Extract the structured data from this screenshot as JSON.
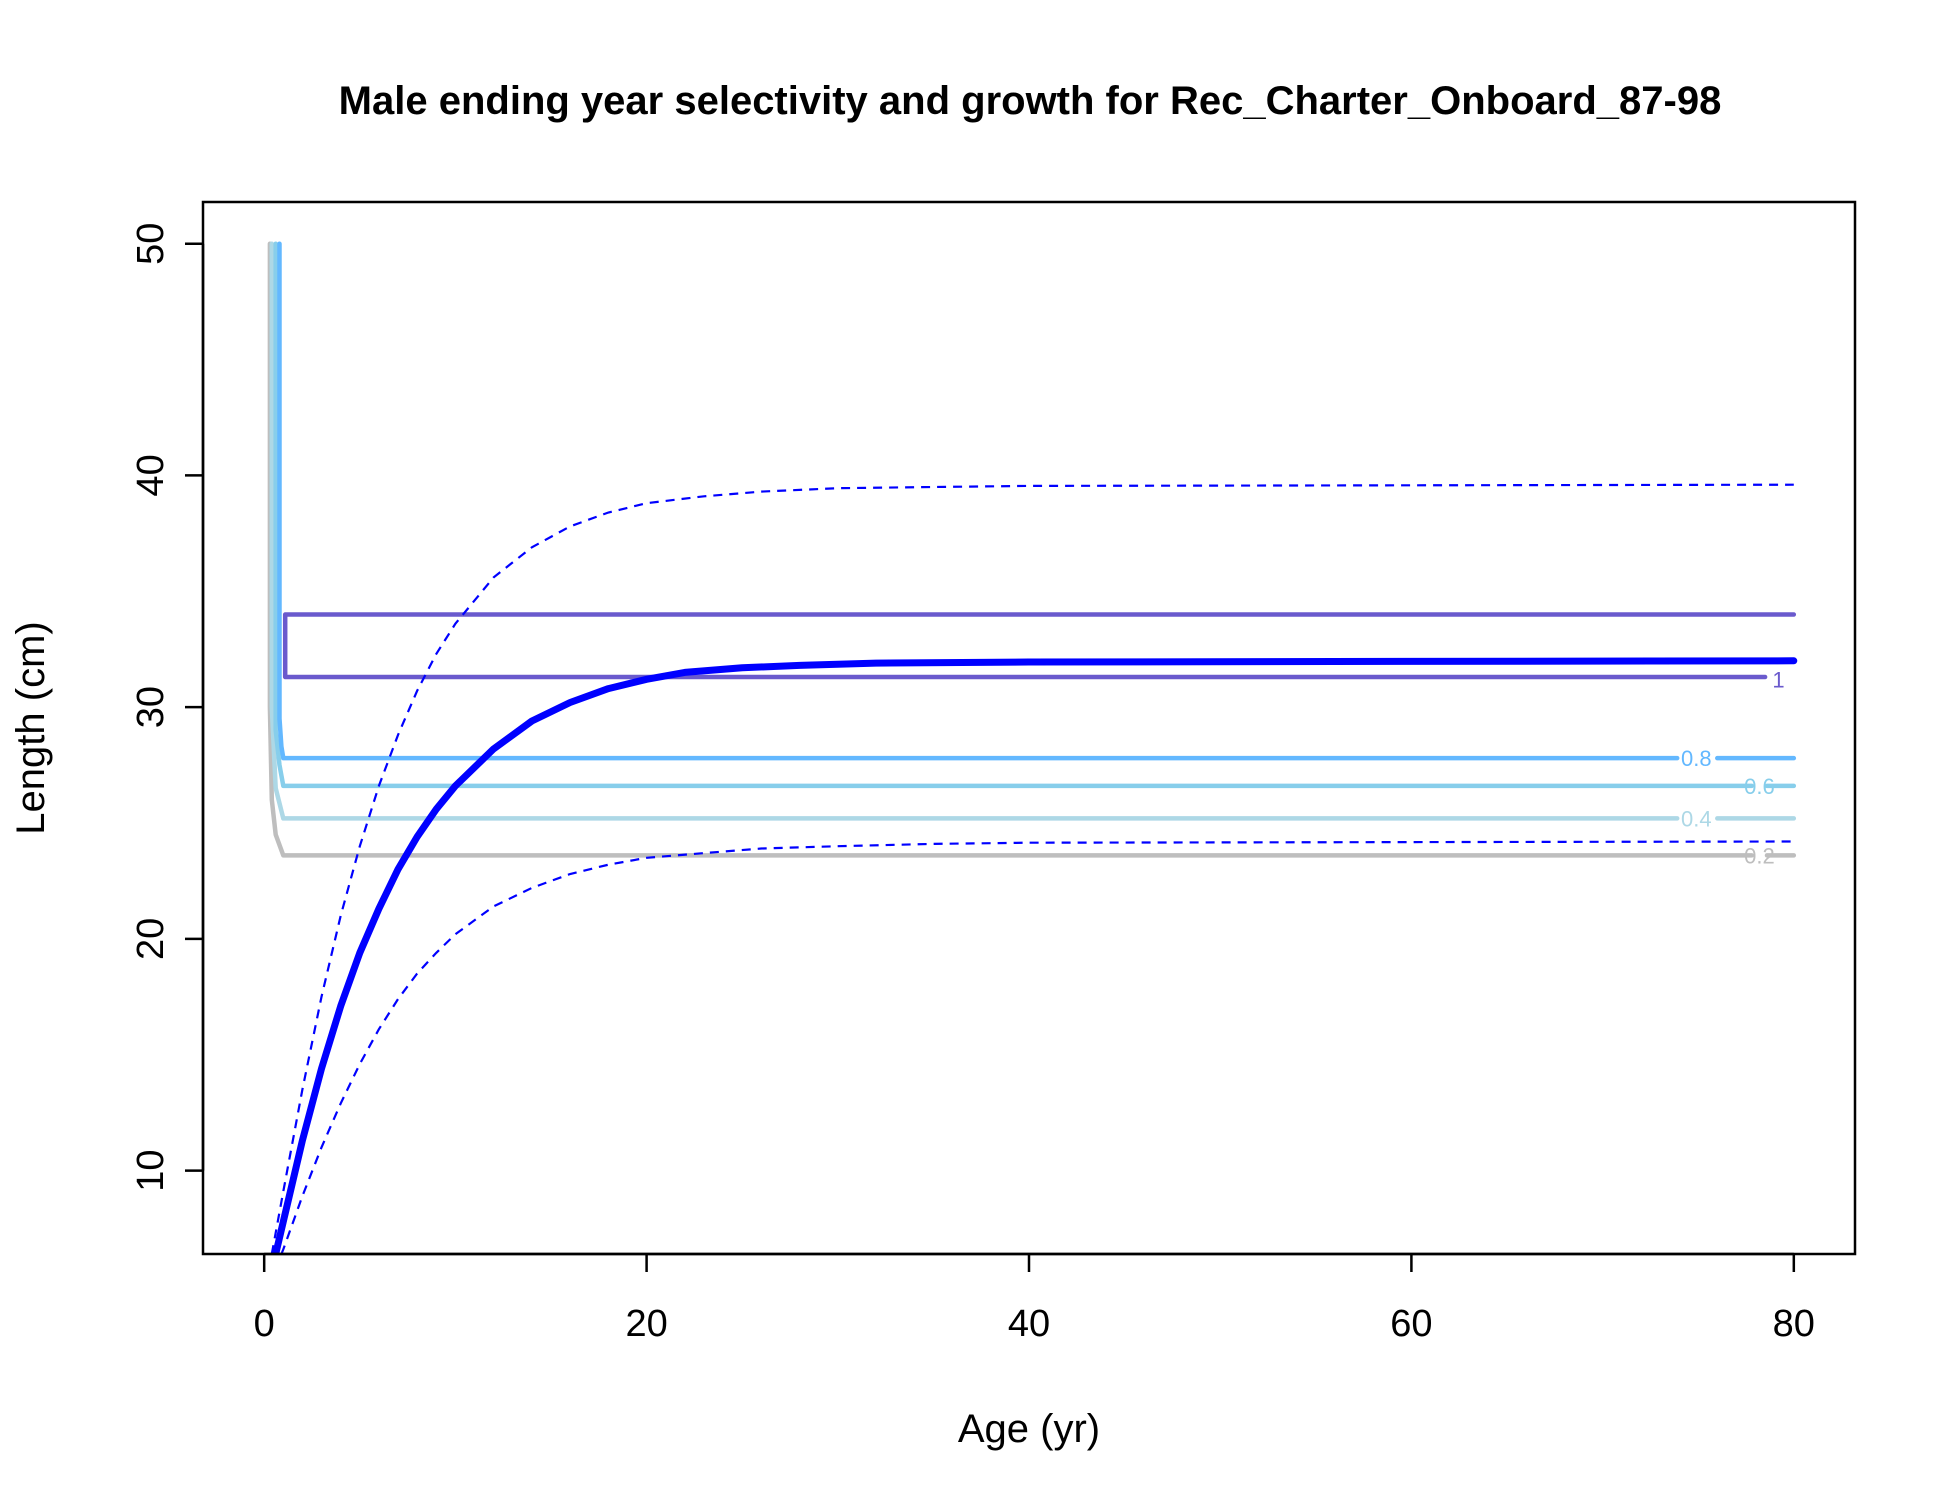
{
  "chart_data": {
    "type": "line",
    "title": "Male ending year selectivity and growth for Rec_Charter_Onboard_87-98",
    "xlabel": "Age (yr)",
    "ylabel": "Length (cm)",
    "xlim": [
      -3.2,
      83.2
    ],
    "ylim": [
      6.4,
      51.8
    ],
    "xticks": [
      0,
      20,
      40,
      60,
      80
    ],
    "yticks": [
      10,
      20,
      30,
      40,
      50
    ],
    "grid": false,
    "growth": {
      "color": "#0000FF",
      "mean": [
        [
          0.6,
          6.4
        ],
        [
          1,
          7.8
        ],
        [
          2,
          11.3
        ],
        [
          3,
          14.4
        ],
        [
          4,
          17.1
        ],
        [
          5,
          19.4
        ],
        [
          6,
          21.3
        ],
        [
          7,
          23
        ],
        [
          8,
          24.4
        ],
        [
          9,
          25.6
        ],
        [
          10,
          26.6
        ],
        [
          12,
          28.2
        ],
        [
          14,
          29.4
        ],
        [
          16,
          30.2
        ],
        [
          18,
          30.8
        ],
        [
          20,
          31.2
        ],
        [
          22,
          31.5
        ],
        [
          25,
          31.7
        ],
        [
          28,
          31.8
        ],
        [
          32,
          31.9
        ],
        [
          40,
          31.95
        ],
        [
          80,
          32
        ]
      ],
      "upper": [
        [
          0.4,
          6.4
        ],
        [
          1,
          9.1
        ],
        [
          2,
          13.5
        ],
        [
          3,
          17.5
        ],
        [
          4,
          21
        ],
        [
          5,
          24
        ],
        [
          6,
          26.6
        ],
        [
          7,
          28.8
        ],
        [
          8,
          30.7
        ],
        [
          9,
          32.3
        ],
        [
          10,
          33.6
        ],
        [
          12,
          35.6
        ],
        [
          14,
          36.9
        ],
        [
          16,
          37.8
        ],
        [
          18,
          38.4
        ],
        [
          20,
          38.8
        ],
        [
          23,
          39.1
        ],
        [
          26,
          39.3
        ],
        [
          30,
          39.45
        ],
        [
          35,
          39.5
        ],
        [
          40,
          39.55
        ],
        [
          80,
          39.6
        ]
      ],
      "lower": [
        [
          0.9,
          6.4
        ],
        [
          1,
          6.6
        ],
        [
          2,
          8.9
        ],
        [
          3,
          11
        ],
        [
          4,
          12.9
        ],
        [
          5,
          14.6
        ],
        [
          6,
          16.1
        ],
        [
          7,
          17.4
        ],
        [
          8,
          18.5
        ],
        [
          9,
          19.4
        ],
        [
          10,
          20.2
        ],
        [
          12,
          21.4
        ],
        [
          14,
          22.2
        ],
        [
          16,
          22.8
        ],
        [
          18,
          23.2
        ],
        [
          20,
          23.5
        ],
        [
          23,
          23.7
        ],
        [
          26,
          23.9
        ],
        [
          30,
          24
        ],
        [
          35,
          24.1
        ],
        [
          40,
          24.15
        ],
        [
          80,
          24.2
        ]
      ]
    },
    "contours": [
      {
        "level": "0.2",
        "color": "#BEBEBE",
        "path": [
          [
            0.3,
            50
          ],
          [
            0.3,
            30
          ],
          [
            0.4,
            26
          ],
          [
            0.6,
            24.5
          ],
          [
            1,
            23.6
          ],
          [
            80,
            23.6
          ]
        ],
        "label_at": [
          78.2,
          23.6
        ],
        "label_gap": [
          77.8,
          78.6
        ]
      },
      {
        "level": "0.4",
        "color": "#ADD8E6",
        "path": [
          [
            0.4,
            50
          ],
          [
            0.4,
            30
          ],
          [
            0.6,
            26.5
          ],
          [
            1,
            25.2
          ],
          [
            80,
            25.2
          ]
        ],
        "label_at": [
          74.9,
          25.2
        ],
        "label_gap": [
          73.9,
          76
        ]
      },
      {
        "level": "0.6",
        "color": "#87CEEB",
        "path": [
          [
            0.6,
            50
          ],
          [
            0.6,
            29
          ],
          [
            0.8,
            27.5
          ],
          [
            1,
            26.6
          ],
          [
            80,
            26.6
          ]
        ],
        "label_at": [
          78.2,
          26.6
        ],
        "label_gap": [
          77.8,
          78.6
        ]
      },
      {
        "level": "0.8",
        "color": "#63B8FF",
        "path": [
          [
            0.8,
            50
          ],
          [
            0.8,
            29.5
          ],
          [
            0.9,
            28.3
          ],
          [
            1,
            27.8
          ],
          [
            80,
            27.8
          ]
        ],
        "label_at": [
          74.9,
          27.8
        ],
        "label_gap": [
          73.9,
          76
        ]
      },
      {
        "level": "1",
        "color": "#6A5ACD",
        "path": [
          [
            80,
            34
          ],
          [
            1.1,
            34
          ],
          [
            1.1,
            31.3
          ],
          [
            78.5,
            31.3
          ]
        ],
        "label_at": [
          79.2,
          31.2
        ],
        "label_gap": null
      }
    ]
  }
}
